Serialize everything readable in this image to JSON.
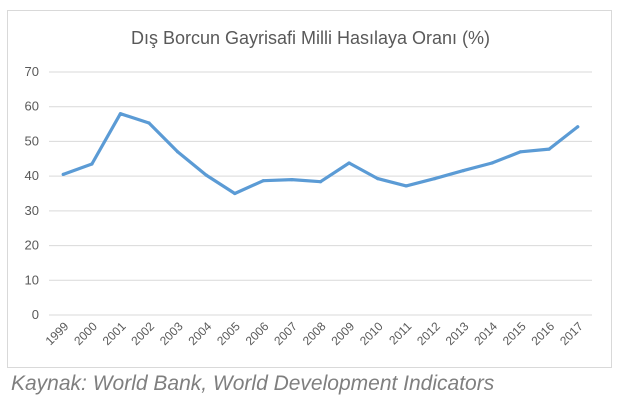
{
  "chart_data": {
    "type": "line",
    "title": "Dış Borcun Gayrisafi Milli Hasılaya Oranı (%)",
    "xlabel": "",
    "ylabel": "",
    "categories": [
      "1999",
      "2000",
      "2001",
      "2002",
      "2003",
      "2004",
      "2005",
      "2006",
      "2007",
      "2008",
      "2009",
      "2010",
      "2011",
      "2012",
      "2013",
      "2014",
      "2015",
      "2016",
      "2017"
    ],
    "series": [
      {
        "values": [
          40.5,
          43.5,
          58.0,
          55.3,
          47.0,
          40.3,
          35.0,
          38.7,
          39.0,
          38.4,
          43.8,
          39.3,
          37.2,
          39.3,
          41.6,
          43.8,
          47.0,
          47.8,
          54.2
        ],
        "color": "#5b9bd5"
      }
    ],
    "ylim": [
      0,
      70
    ],
    "yticks": [
      0,
      10,
      20,
      30,
      40,
      50,
      60,
      70
    ],
    "grid": true,
    "legend": "none"
  },
  "source_text": "Kaynak: World Bank, World Development Indicators",
  "colors": {
    "line": "#5b9bd5",
    "grid": "#d9d9d9",
    "tick_text": "#595959",
    "source_text": "#7f7f7f"
  }
}
